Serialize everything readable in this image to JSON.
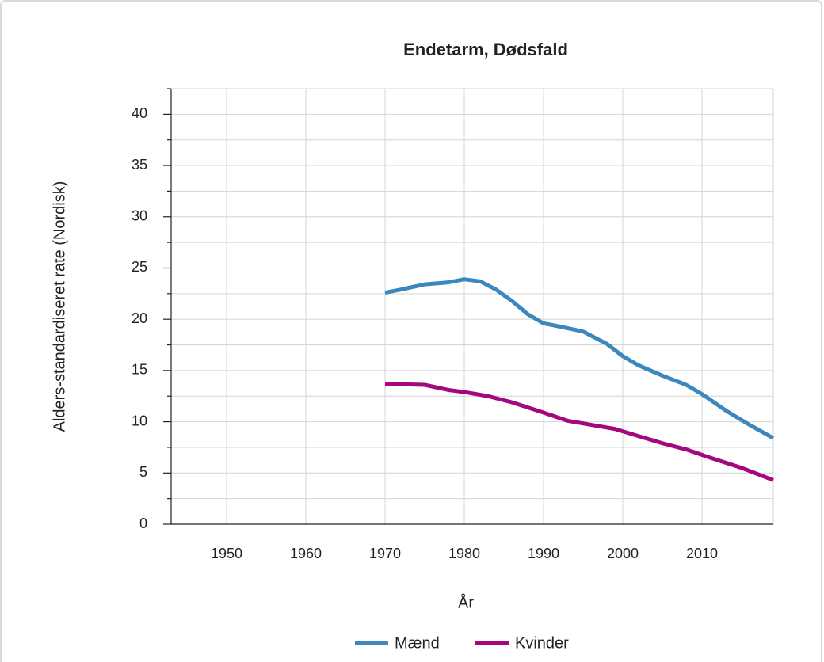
{
  "chart_data": {
    "type": "line",
    "title": "Endetarm, Dødsfald",
    "x_label": "År",
    "y_label": "Alders-standardiseret rate (Nordisk)",
    "xlim": [
      1943,
      2019
    ],
    "xticks": [
      1950,
      1960,
      1970,
      1980,
      1990,
      2000,
      2010
    ],
    "ylim": [
      0,
      42.5
    ],
    "yticks": [
      0,
      5,
      10,
      15,
      20,
      25,
      30,
      35,
      40
    ],
    "yminorticks": [
      2.5,
      7.5,
      12.5,
      17.5,
      22.5,
      27.5,
      32.5,
      37.5,
      42.5
    ],
    "grid": true,
    "legend": "bottom",
    "series": [
      {
        "name": "Mænd",
        "color": "#3d87bf",
        "x": [
          1970,
          1972,
          1975,
          1978,
          1980,
          1982,
          1984,
          1986,
          1988,
          1990,
          1992,
          1995,
          1998,
          2000,
          2002,
          2005,
          2008,
          2010,
          2013,
          2016,
          2019
        ],
        "values": [
          22.6,
          22.9,
          23.4,
          23.6,
          23.9,
          23.7,
          22.9,
          21.8,
          20.5,
          19.6,
          19.3,
          18.8,
          17.6,
          16.4,
          15.5,
          14.5,
          13.6,
          12.7,
          11.1,
          9.7,
          8.4
        ]
      },
      {
        "name": "Kvinder",
        "color": "#a5087d",
        "x": [
          1970,
          1975,
          1978,
          1980,
          1983,
          1986,
          1990,
          1993,
          1996,
          1999,
          2002,
          2005,
          2008,
          2011,
          2015,
          2019
        ],
        "values": [
          13.7,
          13.6,
          13.1,
          12.9,
          12.5,
          11.9,
          10.9,
          10.1,
          9.7,
          9.3,
          8.6,
          7.9,
          7.3,
          6.5,
          5.5,
          4.3
        ]
      }
    ]
  }
}
